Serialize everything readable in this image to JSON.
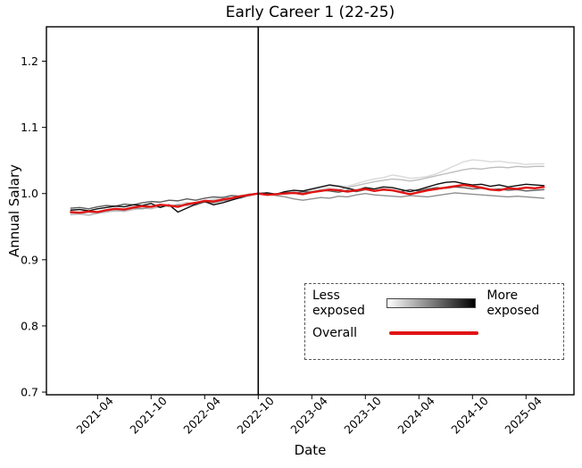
{
  "figure": {
    "title": "Early Career 1 (22-25)",
    "xlabel": "Date",
    "ylabel": "Annual Salary"
  },
  "legend": {
    "less_label": "Less exposed",
    "more_label": "More exposed",
    "overall_label": "Overall",
    "gradient_from": "#ffffff",
    "gradient_to": "#000000",
    "overall_color": "#e01514"
  },
  "colors": {
    "axes_border": "#000000",
    "event_line": "#000000",
    "overall_red": "#e01514",
    "quintile_shades": [
      "#d9d9d9",
      "#bdbdbd",
      "#909090",
      "#5c5c5c",
      "#0d0d0d"
    ]
  },
  "chart_data": {
    "type": "line",
    "title": "Early Career 1 (22-25)",
    "xlabel": "Date",
    "ylabel": "Annual Salary",
    "ylim": [
      0.696,
      1.252
    ],
    "yticks": [
      0.7,
      0.8,
      0.9,
      1.0,
      1.1,
      1.2
    ],
    "xticks": [
      "2021-04",
      "2021-10",
      "2022-04",
      "2022-10",
      "2023-04",
      "2023-10",
      "2024-04",
      "2024-10",
      "2025-04"
    ],
    "vline_x": "2022-10",
    "normalization_note": "all series equal 1.0 at 2022-10",
    "legend_position": "lower right",
    "grid": false,
    "x": [
      "2021-01",
      "2021-02",
      "2021-03",
      "2021-04",
      "2021-05",
      "2021-06",
      "2021-07",
      "2021-08",
      "2021-09",
      "2021-10",
      "2021-11",
      "2021-12",
      "2022-01",
      "2022-02",
      "2022-03",
      "2022-04",
      "2022-05",
      "2022-06",
      "2022-07",
      "2022-08",
      "2022-09",
      "2022-10",
      "2022-11",
      "2022-12",
      "2023-01",
      "2023-02",
      "2023-03",
      "2023-04",
      "2023-05",
      "2023-06",
      "2023-07",
      "2023-08",
      "2023-09",
      "2023-10",
      "2023-11",
      "2023-12",
      "2024-01",
      "2024-02",
      "2024-03",
      "2024-04",
      "2024-05",
      "2024-06",
      "2024-07",
      "2024-08",
      "2024-09",
      "2024-10",
      "2024-11",
      "2024-12",
      "2025-01",
      "2025-02",
      "2025-03",
      "2025-04",
      "2025-05",
      "2025-06"
    ],
    "series": [
      {
        "name": "exposure-quintile-1-least-exposed",
        "color": "#d9d9d9",
        "width": 1.4,
        "values": [
          0.969,
          0.97,
          0.968,
          0.971,
          0.974,
          0.973,
          0.976,
          0.979,
          0.977,
          0.981,
          0.983,
          0.98,
          0.984,
          0.987,
          0.983,
          0.989,
          0.992,
          0.995,
          0.993,
          0.997,
          0.996,
          1.0,
          1.0,
          0.999,
          1.001,
          1.003,
          1.002,
          1.005,
          1.007,
          1.01,
          1.012,
          1.011,
          1.015,
          1.019,
          1.022,
          1.024,
          1.028,
          1.026,
          1.023,
          1.024,
          1.026,
          1.03,
          1.036,
          1.042,
          1.048,
          1.051,
          1.05,
          1.048,
          1.049,
          1.047,
          1.046,
          1.044,
          1.045,
          1.045
        ]
      },
      {
        "name": "exposure-quintile-2",
        "color": "#bdbdbd",
        "width": 1.4,
        "values": [
          0.968,
          0.969,
          0.967,
          0.97,
          0.972,
          0.974,
          0.973,
          0.976,
          0.978,
          0.977,
          0.98,
          0.982,
          0.981,
          0.985,
          0.982,
          0.987,
          0.99,
          0.992,
          0.994,
          0.993,
          0.997,
          1.0,
          0.999,
          1.0,
          1.0,
          1.002,
          1.001,
          1.003,
          1.005,
          1.007,
          1.006,
          1.009,
          1.012,
          1.015,
          1.018,
          1.02,
          1.022,
          1.021,
          1.019,
          1.021,
          1.024,
          1.027,
          1.03,
          1.033,
          1.036,
          1.038,
          1.037,
          1.039,
          1.04,
          1.039,
          1.041,
          1.04,
          1.041,
          1.041
        ]
      },
      {
        "name": "exposure-quintile-3",
        "color": "#909090",
        "width": 1.4,
        "values": [
          0.971,
          0.97,
          0.972,
          0.971,
          0.974,
          0.976,
          0.975,
          0.978,
          0.977,
          0.98,
          0.982,
          0.981,
          0.983,
          0.982,
          0.985,
          0.987,
          0.986,
          0.989,
          0.991,
          0.994,
          0.997,
          1.0,
          0.999,
          0.997,
          0.995,
          0.992,
          0.99,
          0.992,
          0.994,
          0.993,
          0.996,
          0.995,
          0.998,
          1.0,
          0.998,
          0.997,
          0.996,
          0.995,
          0.997,
          0.996,
          0.995,
          0.997,
          0.999,
          1.001,
          1.0,
          0.999,
          0.998,
          0.997,
          0.996,
          0.995,
          0.996,
          0.995,
          0.994,
          0.993
        ]
      },
      {
        "name": "exposure-quintile-4",
        "color": "#5c5c5c",
        "width": 1.4,
        "values": [
          0.978,
          0.979,
          0.977,
          0.98,
          0.982,
          0.981,
          0.984,
          0.983,
          0.986,
          0.988,
          0.987,
          0.99,
          0.989,
          0.992,
          0.99,
          0.993,
          0.995,
          0.994,
          0.997,
          0.996,
          0.999,
          1.0,
          1.001,
          0.999,
          1.002,
          1.0,
          1.003,
          1.002,
          1.005,
          1.004,
          1.002,
          1.005,
          1.003,
          1.006,
          1.004,
          1.007,
          1.005,
          1.003,
          1.006,
          1.004,
          1.007,
          1.009,
          1.008,
          1.01,
          1.009,
          1.007,
          1.008,
          1.006,
          1.007,
          1.005,
          1.006,
          1.004,
          1.005,
          1.006
        ]
      },
      {
        "name": "exposure-quintile-5-most-exposed",
        "color": "#0d0d0d",
        "width": 1.4,
        "values": [
          0.975,
          0.976,
          0.974,
          0.977,
          0.979,
          0.981,
          0.98,
          0.983,
          0.982,
          0.985,
          0.979,
          0.983,
          0.972,
          0.978,
          0.984,
          0.988,
          0.983,
          0.986,
          0.99,
          0.994,
          0.998,
          1.0,
          1.001,
          0.999,
          1.003,
          1.005,
          1.004,
          1.007,
          1.01,
          1.013,
          1.011,
          1.008,
          1.005,
          1.009,
          1.007,
          1.01,
          1.009,
          1.006,
          1.003,
          1.006,
          1.01,
          1.014,
          1.017,
          1.018,
          1.015,
          1.013,
          1.014,
          1.011,
          1.013,
          1.01,
          1.012,
          1.014,
          1.013,
          1.012
        ]
      },
      {
        "name": "overall",
        "color": "#e01514",
        "width": 2.4,
        "values": [
          0.972,
          0.971,
          0.973,
          0.972,
          0.975,
          0.977,
          0.976,
          0.979,
          0.981,
          0.98,
          0.983,
          0.982,
          0.98,
          0.984,
          0.986,
          0.989,
          0.988,
          0.991,
          0.993,
          0.996,
          0.998,
          1.0,
          0.998,
          0.999,
          1.0,
          1.001,
          0.999,
          1.002,
          1.004,
          1.006,
          1.005,
          1.003,
          1.005,
          1.007,
          1.004,
          1.006,
          1.005,
          1.002,
          0.999,
          1.002,
          1.005,
          1.007,
          1.009,
          1.011,
          1.013,
          1.011,
          1.009,
          1.006,
          1.005,
          1.008,
          1.007,
          1.009,
          1.008,
          1.01
        ]
      }
    ]
  }
}
